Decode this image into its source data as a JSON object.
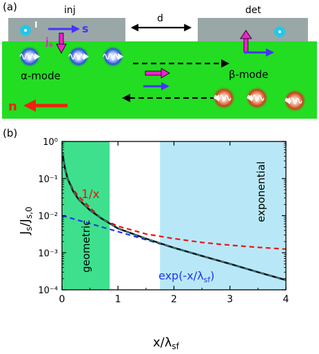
{
  "panel_a": {
    "label": "(a)",
    "inj_label": "inj",
    "det_label": "det",
    "d_label": "d",
    "i_label": "I",
    "s_label": "s",
    "js_label": "j",
    "js_sub": "s",
    "n_label": "n",
    "alpha_mode": "α-mode",
    "beta_mode": "β-mode",
    "colors": {
      "channel": "#22dd22",
      "contact": "#9aa7a7",
      "spin_up": "#ee22cc",
      "spin_s": "#4433ff",
      "n_arrow": "#ee2211",
      "alpha_glow": "#2a4fd8",
      "beta_glow": "#c8401a",
      "terminal": "#22c8e8"
    },
    "icons": [
      "double-arrow-icon",
      "dashed-arrow-right-icon",
      "dashed-arrow-left-icon",
      "wave-packet-icon"
    ]
  },
  "panel_b": {
    "label": "(b)",
    "ylabel_main": "J",
    "ylabel_sub1": "s",
    "ylabel_mid": "/J",
    "ylabel_sub2": "s,0",
    "xlabel_main": "x/λ",
    "xlabel_sub": "sf",
    "annotation_inv": "1/x",
    "annotation_exp_main": "exp(-x/λ",
    "annotation_exp_sub": "sf",
    "annotation_exp_close": ")",
    "annotation_geometric": "geometric",
    "annotation_exponential": "exponential",
    "colors": {
      "geometric_region": "#3ee08e",
      "exponential_region": "#b8e8f8",
      "inv_curve": "#ee1111",
      "exp_curve": "#2233ee",
      "full_curve": "#111111",
      "fit_curve": "#2a9a9a"
    }
  },
  "chart_data": {
    "type": "line",
    "xlim": [
      0,
      4
    ],
    "ylim": [
      0.0001,
      1
    ],
    "yscale": "log",
    "xticks": [
      "0",
      "1",
      "2",
      "3",
      "4"
    ],
    "yticks": [
      "10⁻⁴",
      "10⁻³",
      "10⁻²",
      "10⁻¹",
      "10⁰"
    ],
    "regions": [
      {
        "label": "geometric",
        "x": [
          0,
          0.85
        ]
      },
      {
        "label": "exponential",
        "x": [
          1.75,
          4
        ]
      }
    ],
    "series": [
      {
        "name": "1/x",
        "style": "dashed",
        "x": [
          0.05,
          0.1,
          0.2,
          0.3,
          0.5,
          0.7,
          1.0,
          1.5,
          2.0,
          2.5,
          3.0,
          3.5,
          4.0
        ],
        "y": [
          0.19,
          0.1,
          0.05,
          0.033,
          0.0165,
          0.0083,
          0.0052,
          0.0032,
          0.0024,
          0.0019,
          0.0016,
          0.0014,
          0.00125
        ]
      },
      {
        "name": "exp(-x/λsf)",
        "style": "dashed",
        "x": [
          0,
          0.5,
          1.0,
          1.5,
          2.0,
          2.5,
          3.0,
          3.5,
          4.0
        ],
        "y": [
          0.01,
          0.0061,
          0.0037,
          0.00224,
          0.00136,
          0.00082,
          0.0005,
          0.0003,
          0.000183
        ]
      },
      {
        "name": "full",
        "style": "solid",
        "x": [
          0.01,
          0.03,
          0.05,
          0.1,
          0.2,
          0.3,
          0.5,
          0.7,
          1.0,
          1.5,
          2.0,
          2.5,
          3.0,
          3.5,
          4.0
        ],
        "y": [
          0.5,
          0.3,
          0.2,
          0.1,
          0.045,
          0.027,
          0.014,
          0.0085,
          0.0045,
          0.0024,
          0.00136,
          0.00082,
          0.0005,
          0.0003,
          0.000183
        ]
      }
    ]
  }
}
